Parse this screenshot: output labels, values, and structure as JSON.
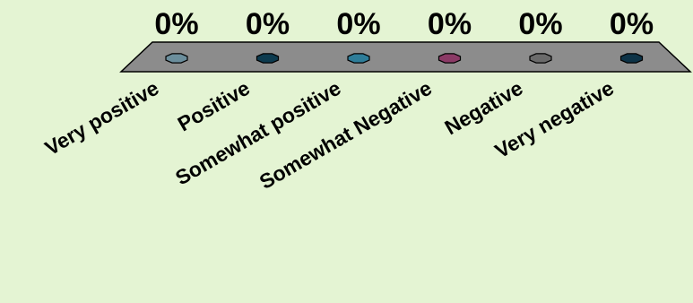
{
  "chart_data": {
    "type": "bar",
    "categories": [
      "Very positive",
      "Positive",
      "Somewhat positive",
      "Somewhat Negative",
      "Negative",
      "Very negative"
    ],
    "values": [
      0,
      0,
      0,
      0,
      0,
      0
    ],
    "data_labels": [
      "0%",
      "0%",
      "0%",
      "0%",
      "0%",
      "0%"
    ],
    "colors": [
      "#6b8e9c",
      "#0d3b4f",
      "#2e7d99",
      "#8b3a66",
      "#6b6b6b",
      "#0d3347"
    ],
    "platform_color": "#8c8c8c",
    "background": "#e4f4d3",
    "title": "",
    "xlabel": "",
    "ylabel": "",
    "ylim": [
      0,
      100
    ],
    "legend": "none",
    "grid": false
  }
}
